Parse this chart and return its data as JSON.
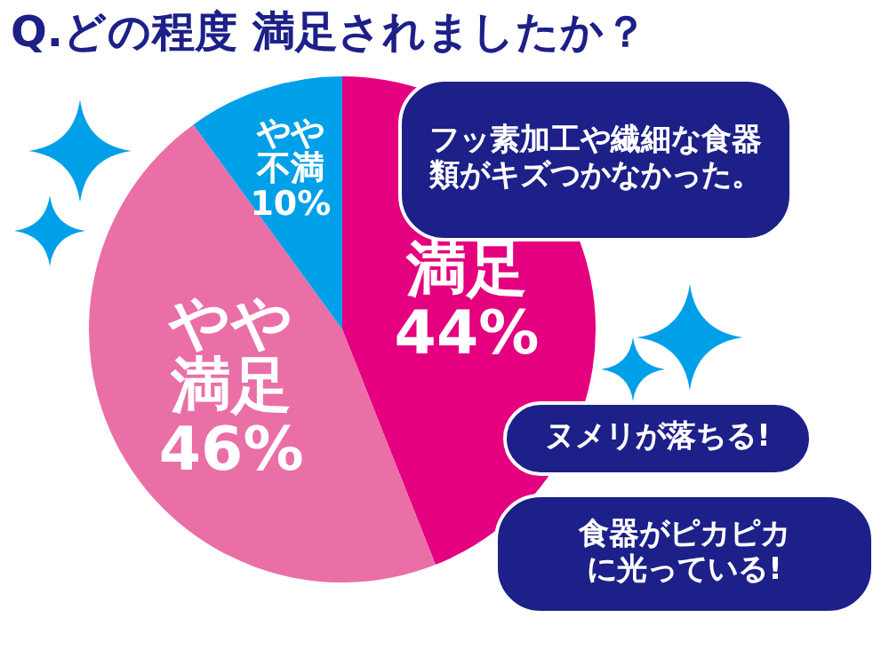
{
  "chart_data": {
    "type": "pie",
    "title": "Q.どの程度 満足されましたか？",
    "categories": [
      "満足",
      "やや満足",
      "やや不満"
    ],
    "values": [
      44,
      46,
      10
    ],
    "colors": [
      "#e4007f",
      "#ea6fa6",
      "#00a0e9"
    ],
    "value_labels": [
      "44%",
      "46%",
      "10%"
    ],
    "legend": false,
    "annotations": [
      "フッ素加工や繊細な食器類がキズつかなかった。",
      "ヌメリが落ちる!",
      "食器がピカピカに光っている!"
    ]
  }
}
